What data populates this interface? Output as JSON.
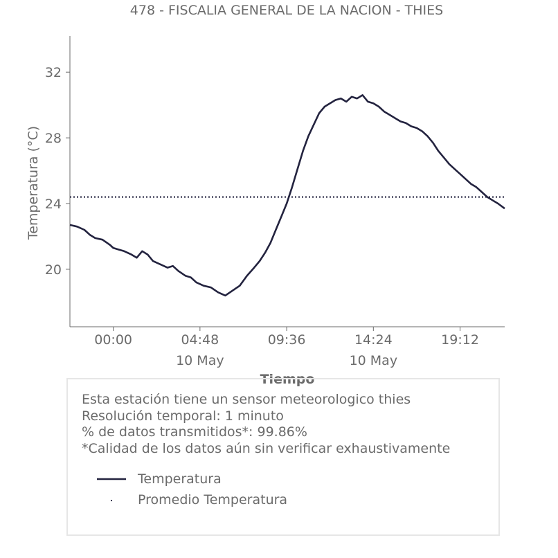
{
  "chart_data": {
    "type": "line",
    "title": "478 - FISCALIA GENERAL DE LA NACION - THIES",
    "xlabel": "Tiempo",
    "ylabel": "Temperatura (°C)",
    "x_unit": "hours since 00:00 10 May",
    "xlim": [
      -2.4,
      21.67
    ],
    "ylim": [
      16.5,
      34.2
    ],
    "yticks": [
      20,
      24,
      28,
      32
    ],
    "xticks": [
      {
        "value": 0.0,
        "label": "00:00",
        "sublabel": ""
      },
      {
        "value": 4.8,
        "label": "04:48",
        "sublabel": "10 May"
      },
      {
        "value": 9.6,
        "label": "09:36",
        "sublabel": ""
      },
      {
        "value": 14.4,
        "label": "14:24",
        "sublabel": "10 May"
      },
      {
        "value": 19.2,
        "label": "19:12",
        "sublabel": ""
      }
    ],
    "grid": false,
    "legend_placement": "below",
    "series": [
      {
        "name": "Temperatura",
        "color": "#23233f",
        "style": "solid",
        "x": [
          -2.4,
          -2.0,
          -1.6,
          -1.3,
          -1.0,
          -0.6,
          -0.2,
          0.0,
          0.3,
          0.6,
          1.0,
          1.3,
          1.6,
          1.9,
          2.2,
          2.6,
          3.0,
          3.3,
          3.6,
          4.0,
          4.3,
          4.6,
          5.0,
          5.4,
          5.8,
          6.2,
          6.6,
          7.0,
          7.4,
          7.8,
          8.1,
          8.4,
          8.7,
          9.0,
          9.3,
          9.6,
          9.9,
          10.2,
          10.5,
          10.8,
          11.1,
          11.4,
          11.7,
          12.0,
          12.3,
          12.6,
          12.9,
          13.2,
          13.5,
          13.8,
          14.1,
          14.4,
          14.7,
          15.0,
          15.3,
          15.6,
          15.9,
          16.2,
          16.5,
          16.8,
          17.1,
          17.4,
          17.7,
          18.0,
          18.3,
          18.6,
          18.9,
          19.2,
          19.5,
          19.8,
          20.1,
          20.4,
          20.7,
          21.0,
          21.3,
          21.67
        ],
        "y": [
          22.7,
          22.6,
          22.4,
          22.1,
          21.9,
          21.8,
          21.5,
          21.3,
          21.2,
          21.1,
          20.9,
          20.7,
          21.1,
          20.9,
          20.5,
          20.3,
          20.1,
          20.2,
          19.9,
          19.6,
          19.5,
          19.2,
          19.0,
          18.9,
          18.6,
          18.4,
          18.7,
          19.0,
          19.6,
          20.1,
          20.5,
          21.0,
          21.6,
          22.4,
          23.2,
          24.0,
          25.0,
          26.1,
          27.2,
          28.1,
          28.8,
          29.5,
          29.9,
          30.1,
          30.3,
          30.4,
          30.2,
          30.5,
          30.4,
          30.6,
          30.2,
          30.1,
          29.9,
          29.6,
          29.4,
          29.2,
          29.0,
          28.9,
          28.7,
          28.6,
          28.4,
          28.1,
          27.7,
          27.2,
          26.8,
          26.4,
          26.1,
          25.8,
          25.5,
          25.2,
          25.0,
          24.7,
          24.4,
          24.2,
          24.0,
          23.7
        ]
      },
      {
        "name": "Promedio Temperatura",
        "color": "#23233f",
        "style": "dotted",
        "value": 24.4
      }
    ]
  },
  "info": {
    "line1": "Esta estación tiene un sensor meteorologico thies",
    "line2": "Resolución temporal: 1 minuto",
    "line3": "% de datos transmitidos*: 99.86%",
    "line4": "*Calidad de los datos aún sin verificar exhaustivamente"
  },
  "legend": {
    "item1": "Temperatura",
    "item2": "Promedio Temperatura"
  },
  "colors": {
    "series": "#23233f",
    "text": "#6b6b6b",
    "axis": "#6b6b6b",
    "box_border": "#e6e6e6"
  }
}
